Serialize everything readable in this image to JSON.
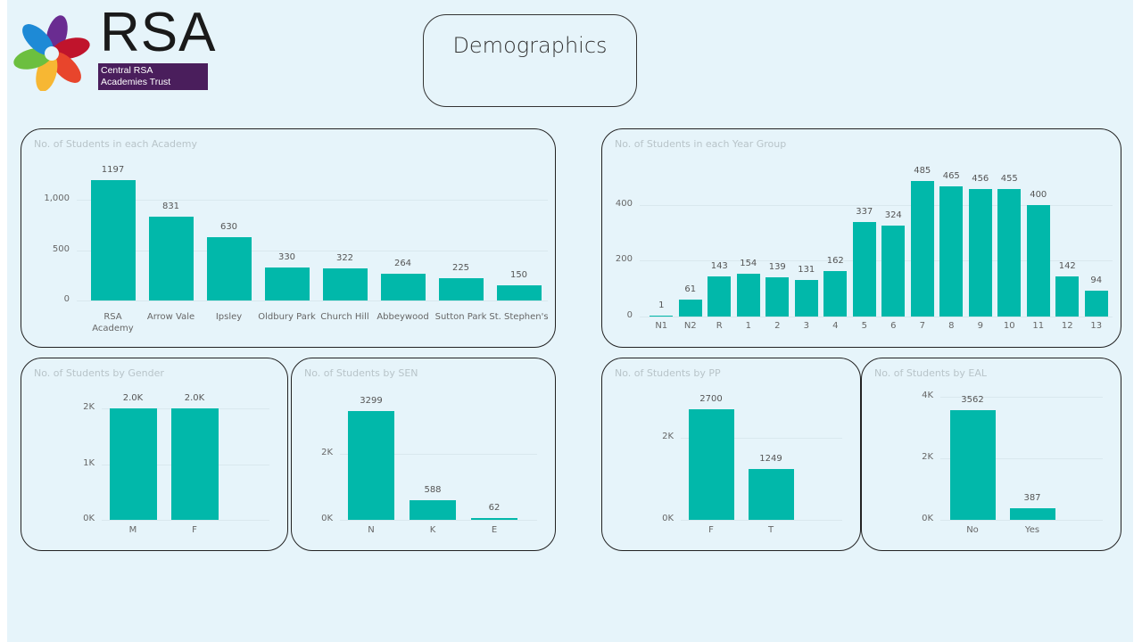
{
  "header": {
    "logo_text": "RSA",
    "logo_subtitle_line1": "Central RSA",
    "logo_subtitle_line2": "Academies Trust",
    "page_title": "Demographics"
  },
  "colors": {
    "bar": "#01b8aa",
    "background": "#e6f4fa",
    "panel_border": "#222222",
    "title_text": "#b8c4c9"
  },
  "chart_data": [
    {
      "id": "academy",
      "type": "bar",
      "title": "No. of Students in each Academy",
      "categories": [
        "RSA Academy",
        "Arrow Vale",
        "Ipsley",
        "Oldbury Park",
        "Church Hill",
        "Abbeywood",
        "Sutton Park",
        "St. Stephen's"
      ],
      "values": [
        1197,
        831,
        630,
        330,
        322,
        264,
        225,
        150
      ],
      "value_labels": [
        "1197",
        "831",
        "630",
        "330",
        "322",
        "264",
        "225",
        "150"
      ],
      "yticks": [
        "0",
        "500",
        "1,000"
      ],
      "ytick_values": [
        0,
        500,
        1000
      ],
      "ylim": [
        0,
        1197
      ],
      "xlabel": "",
      "ylabel": ""
    },
    {
      "id": "year",
      "type": "bar",
      "title": "No. of Students in each Year Group",
      "categories": [
        "N1",
        "N2",
        "R",
        "1",
        "2",
        "3",
        "4",
        "5",
        "6",
        "7",
        "8",
        "9",
        "10",
        "11",
        "12",
        "13"
      ],
      "values": [
        1,
        61,
        143,
        154,
        139,
        131,
        162,
        337,
        324,
        485,
        465,
        456,
        455,
        400,
        142,
        94
      ],
      "value_labels": [
        "1",
        "61",
        "143",
        "154",
        "139",
        "131",
        "162",
        "337",
        "324",
        "485",
        "465",
        "456",
        "455",
        "400",
        "142",
        "94"
      ],
      "yticks": [
        "0",
        "200",
        "400"
      ],
      "ytick_values": [
        0,
        200,
        400
      ],
      "ylim": [
        0,
        485
      ],
      "xlabel": "",
      "ylabel": ""
    },
    {
      "id": "gender",
      "type": "bar",
      "title": "No. of Students by Gender",
      "categories": [
        "M",
        "F"
      ],
      "values": [
        2000,
        2000
      ],
      "value_labels": [
        "2.0K",
        "2.0K"
      ],
      "yticks": [
        "0K",
        "1K",
        "2K"
      ],
      "ytick_values": [
        0,
        1000,
        2000
      ],
      "ylim": [
        0,
        2000
      ],
      "xlabel": "",
      "ylabel": ""
    },
    {
      "id": "sen",
      "type": "bar",
      "title": "No. of Students by SEN",
      "categories": [
        "N",
        "K",
        "E"
      ],
      "values": [
        3299,
        588,
        62
      ],
      "value_labels": [
        "3299",
        "588",
        "62"
      ],
      "yticks": [
        "0K",
        "2K"
      ],
      "ytick_values": [
        0,
        2000
      ],
      "ylim": [
        0,
        3299
      ],
      "xlabel": "",
      "ylabel": ""
    },
    {
      "id": "pp",
      "type": "bar",
      "title": "No. of Students by PP",
      "categories": [
        "F",
        "T"
      ],
      "values": [
        2700,
        1249
      ],
      "value_labels": [
        "2700",
        "1249"
      ],
      "yticks": [
        "0K",
        "2K"
      ],
      "ytick_values": [
        0,
        2000
      ],
      "ylim": [
        0,
        2700
      ],
      "xlabel": "",
      "ylabel": ""
    },
    {
      "id": "eal",
      "type": "bar",
      "title": "No. of Students by EAL",
      "categories": [
        "No",
        "Yes"
      ],
      "values": [
        3562,
        387
      ],
      "value_labels": [
        "3562",
        "387"
      ],
      "yticks": [
        "0K",
        "2K",
        "4K"
      ],
      "ytick_values": [
        0,
        2000,
        4000
      ],
      "ylim": [
        0,
        4000
      ],
      "xlabel": "",
      "ylabel": ""
    }
  ]
}
